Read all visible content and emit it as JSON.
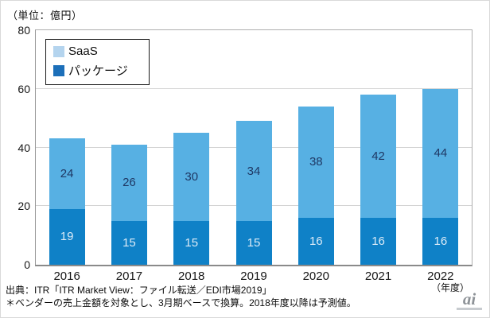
{
  "frame": {
    "unit_label": "（単位：億円）"
  },
  "chart_data": {
    "type": "bar",
    "stacked": true,
    "title": "",
    "unit_label": "（単位：億円）",
    "xlabel": "（年度）",
    "categories": [
      "2016",
      "2017",
      "2018",
      "2019",
      "2020",
      "2021",
      "2022"
    ],
    "series": [
      {
        "name": "パッケージ",
        "values": [
          19,
          15,
          15,
          15,
          16,
          16,
          16
        ],
        "color": "#0F81C7",
        "label_color": "#DCEBF7",
        "legend_swatch_color": "#1C6FB9"
      },
      {
        "name": "SaaS",
        "values": [
          24,
          26,
          30,
          34,
          38,
          42,
          44
        ],
        "color": "#57B0E3",
        "label_color": "#1F3864",
        "legend_swatch_color": "#B4D4EE"
      }
    ],
    "legend_entries": [
      "SaaS",
      "パッケージ"
    ],
    "legend_position": "top-left",
    "yticks": [
      0,
      20,
      40,
      60,
      80
    ],
    "ylim": [
      0,
      80
    ],
    "grid": true
  },
  "footer": {
    "source_line1": "出典：ITR「ITR Market View：ファイル転送／EDI市場2019」",
    "source_line2": "＊ベンダーの売上金額を対象とし、3月期ベースで換算。2018年度以降は予測値。",
    "logo_text": "ai"
  }
}
